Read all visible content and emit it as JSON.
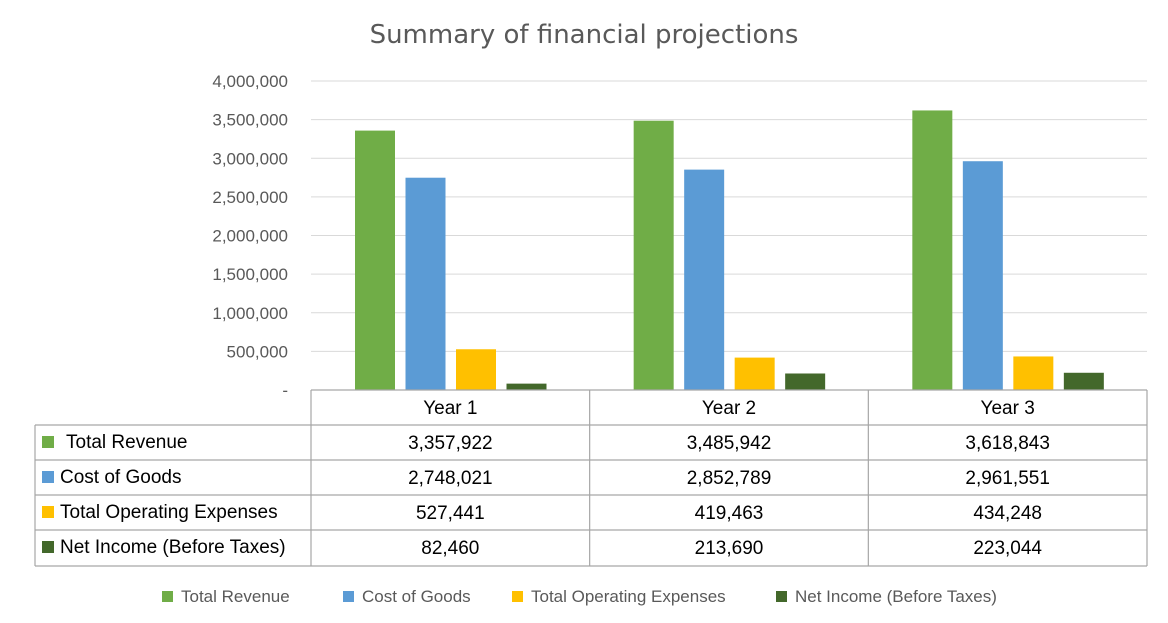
{
  "chart_data": {
    "type": "bar",
    "title": "Summary of financial projections",
    "categories": [
      "Year 1",
      "Year 2",
      "Year 3"
    ],
    "series": [
      {
        "name": "Total Revenue",
        "color": "#70ad47",
        "values": [
          3357922,
          3485942,
          3618843
        ],
        "labels": [
          "3,357,922",
          "3,485,942",
          "3,618,843"
        ]
      },
      {
        "name": "Cost of Goods",
        "color": "#5b9bd5",
        "values": [
          2748021,
          2852789,
          2961551
        ],
        "labels": [
          "2,748,021",
          "2,852,789",
          "2,961,551"
        ]
      },
      {
        "name": "Total Operating Expenses",
        "color": "#ffc000",
        "values": [
          527441,
          419463,
          434248
        ],
        "labels": [
          "527,441",
          "419,463",
          "434,248"
        ]
      },
      {
        "name": "Net Income (Before Taxes)",
        "color": "#43682b",
        "values": [
          82460,
          213690,
          223044
        ],
        "labels": [
          "82,460",
          "213,690",
          "223,044"
        ]
      }
    ],
    "ylim": [
      0,
      4000000
    ],
    "yticks": [
      0,
      500000,
      1000000,
      1500000,
      2000000,
      2500000,
      3000000,
      3500000,
      4000000
    ],
    "ytick_labels": [
      "-",
      "500,000",
      "1,000,000",
      "1,500,000",
      "2,000,000",
      "2,500,000",
      "3,000,000",
      "3,500,000",
      "4,000,000"
    ],
    "grid": true,
    "legend_position": "bottom",
    "data_table": true
  }
}
